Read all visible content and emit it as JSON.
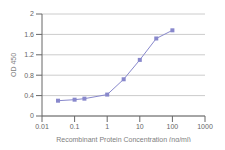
{
  "chart_data": {
    "type": "line",
    "x": [
      0.031,
      0.1,
      0.2,
      1.0,
      3.2,
      10.0,
      32.0,
      100.0
    ],
    "values": [
      0.3,
      0.32,
      0.34,
      0.42,
      0.72,
      1.1,
      1.52,
      1.68
    ],
    "color": "#8888cc",
    "marker": "square",
    "xlabel": "Recombinant Protein Concentration (ng/ml)",
    "ylabel": "OD 450",
    "log": "x",
    "xlim": [
      0.01,
      1000
    ],
    "xticks": [
      0.01,
      0.1,
      1,
      10,
      100,
      1000
    ],
    "ylim": [
      0,
      2.0
    ],
    "yticks": [
      0,
      0.4,
      0.8,
      1.2,
      1.6,
      2.0
    ],
    "grid": true
  }
}
